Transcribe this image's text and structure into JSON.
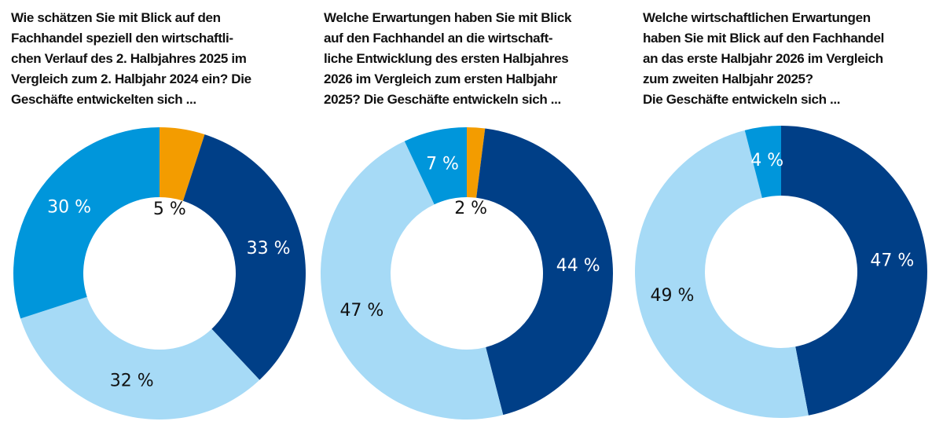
{
  "colors": {
    "orange": "#f39c00",
    "navy": "#003f87",
    "medium": "#0096db",
    "light": "#a6daf6"
  },
  "chart_data": [
    {
      "type": "pie",
      "donut": true,
      "title_lines": [
        "Wie schätzen Sie mit Blick auf den",
        "Fachhandel speziell den wirtschaftli-",
        "chen Verlauf des 2. Halbjahres 2025 im",
        "Vergleich zum 2. Halbjahr 2024 ein? Die",
        "Geschäfte entwickelten sich ..."
      ],
      "slices": [
        {
          "value": 5,
          "label": "5 %",
          "color": "orange"
        },
        {
          "value": 33,
          "label": "33 %",
          "color": "navy"
        },
        {
          "value": 32,
          "label": "32 %",
          "color": "light"
        },
        {
          "value": 30,
          "label": "30 %",
          "color": "medium"
        }
      ]
    },
    {
      "type": "pie",
      "donut": true,
      "title_lines": [
        "Welche Erwartungen haben Sie mit Blick",
        "auf den Fachhandel an die wirtschaft-",
        "liche Entwicklung des ersten Halbjahres",
        "2026 im Vergleich zum ersten Halbjahr",
        "2025? Die Geschäfte entwickeln sich ..."
      ],
      "slices": [
        {
          "value": 2,
          "label": "2 %",
          "color": "orange"
        },
        {
          "value": 44,
          "label": "44 %",
          "color": "navy"
        },
        {
          "value": 47,
          "label": "47 %",
          "color": "light"
        },
        {
          "value": 7,
          "label": "7 %",
          "color": "medium"
        }
      ]
    },
    {
      "type": "pie",
      "donut": true,
      "title_lines": [
        "Welche wirtschaftlichen Erwartungen",
        "haben Sie mit Blick auf den Fachhandel",
        "an das erste Halbjahr 2026 im Vergleich",
        "zum zweiten Halbjahr 2025?",
        "Die Geschäfte entwickeln sich ..."
      ],
      "slices": [
        {
          "value": 47,
          "label": "47 %",
          "color": "navy"
        },
        {
          "value": 49,
          "label": "49 %",
          "color": "light"
        },
        {
          "value": 4,
          "label": "4 %",
          "color": "medium"
        }
      ]
    }
  ]
}
